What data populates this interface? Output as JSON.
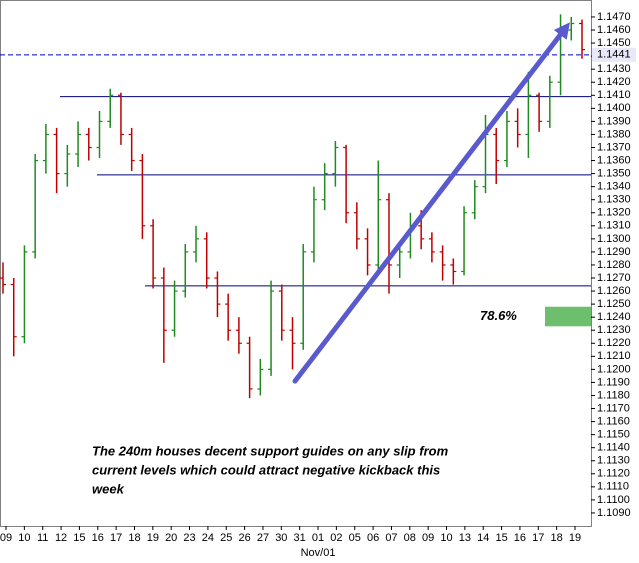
{
  "chart_data": {
    "type": "ohlc",
    "up_color": "#1f8a1f",
    "down_color": "#c00000",
    "ylim": [
      1.108,
      1.1483
    ],
    "yticks": [
      {
        "value": 1.147,
        "label": "1.1470"
      },
      {
        "value": 1.146,
        "label": "1.1460"
      },
      {
        "value": 1.145,
        "label": "1.1450"
      },
      {
        "value": 1.144,
        "label": "1.1440"
      },
      {
        "value": 1.143,
        "label": "1.1430"
      },
      {
        "value": 1.142,
        "label": "1.1420"
      },
      {
        "value": 1.141,
        "label": "1.1410"
      },
      {
        "value": 1.14,
        "label": "1.1400"
      },
      {
        "value": 1.139,
        "label": "1.1390"
      },
      {
        "value": 1.138,
        "label": "1.1380"
      },
      {
        "value": 1.137,
        "label": "1.1370"
      },
      {
        "value": 1.136,
        "label": "1.1360"
      },
      {
        "value": 1.135,
        "label": "1.1350"
      },
      {
        "value": 1.134,
        "label": "1.1340"
      },
      {
        "value": 1.133,
        "label": "1.1330"
      },
      {
        "value": 1.132,
        "label": "1.1320"
      },
      {
        "value": 1.131,
        "label": "1.1310"
      },
      {
        "value": 1.13,
        "label": "1.1300"
      },
      {
        "value": 1.129,
        "label": "1.1290"
      },
      {
        "value": 1.128,
        "label": "1.1280"
      },
      {
        "value": 1.127,
        "label": "1.1270"
      },
      {
        "value": 1.126,
        "label": "1.1260"
      },
      {
        "value": 1.125,
        "label": "1.1250"
      },
      {
        "value": 1.124,
        "label": "1.1240"
      },
      {
        "value": 1.123,
        "label": "1.1230"
      },
      {
        "value": 1.122,
        "label": "1.1220"
      },
      {
        "value": 1.121,
        "label": "1.1210"
      },
      {
        "value": 1.12,
        "label": "1.1200"
      },
      {
        "value": 1.119,
        "label": "1.1190"
      },
      {
        "value": 1.118,
        "label": "1.1180"
      },
      {
        "value": 1.117,
        "label": "1.1170"
      },
      {
        "value": 1.116,
        "label": "1.1160"
      },
      {
        "value": 1.115,
        "label": "1.1150"
      },
      {
        "value": 1.114,
        "label": "1.1140"
      },
      {
        "value": 1.113,
        "label": "1.1130"
      },
      {
        "value": 1.112,
        "label": "1.1120"
      },
      {
        "value": 1.111,
        "label": "1.1110"
      },
      {
        "value": 1.11,
        "label": "1.1100"
      },
      {
        "value": 1.109,
        "label": "1.1090"
      }
    ],
    "x_labels": [
      "09",
      "10",
      "11",
      "12",
      "15",
      "16",
      "17",
      "18",
      "19",
      "20",
      "23",
      "24",
      "25",
      "26",
      "27",
      "30",
      "31",
      "01",
      "02",
      "05",
      "06",
      "07",
      "08",
      "09",
      "10",
      "13",
      "14",
      "15",
      "16",
      "17",
      "18",
      "19"
    ],
    "x_sublabel": "Nov/01",
    "current_price": 1.1441,
    "levels": [
      1.1409,
      1.1349,
      1.1264
    ],
    "trend": {
      "start": 1.1191,
      "end": 1.1466
    },
    "zone": {
      "low": 1.1233,
      "high": 1.1248,
      "label": "78.6%",
      "color": "#6dbf6d"
    },
    "note": [
      "The 240m houses decent support guides on any slip from",
      "current levels which could attract negative kickback this",
      "week"
    ],
    "bars": [
      [
        1.127,
        1.1282,
        1.1258,
        1.1265
      ],
      [
        1.1265,
        1.127,
        1.121,
        1.1225
      ],
      [
        1.1225,
        1.1295,
        1.122,
        1.129
      ],
      [
        1.129,
        1.1365,
        1.1285,
        1.136
      ],
      [
        1.136,
        1.1388,
        1.135,
        1.138
      ],
      [
        1.138,
        1.1385,
        1.1335,
        1.135
      ],
      [
        1.135,
        1.1372,
        1.134,
        1.1365
      ],
      [
        1.1365,
        1.139,
        1.1355,
        1.138
      ],
      [
        1.138,
        1.1385,
        1.136,
        1.137
      ],
      [
        1.137,
        1.1398,
        1.1362,
        1.139
      ],
      [
        1.139,
        1.1415,
        1.1385,
        1.141
      ],
      [
        1.141,
        1.1412,
        1.1372,
        1.138
      ],
      [
        1.138,
        1.1385,
        1.1352,
        1.136
      ],
      [
        1.136,
        1.1365,
        1.13,
        1.131
      ],
      [
        1.131,
        1.1315,
        1.1262,
        1.127
      ],
      [
        1.127,
        1.1278,
        1.1205,
        1.123
      ],
      [
        1.123,
        1.1268,
        1.1225,
        1.126
      ],
      [
        1.126,
        1.1296,
        1.1255,
        1.129
      ],
      [
        1.129,
        1.131,
        1.1282,
        1.13
      ],
      [
        1.13,
        1.1305,
        1.1262,
        1.127
      ],
      [
        1.127,
        1.1275,
        1.124,
        1.125
      ],
      [
        1.125,
        1.1258,
        1.1222,
        1.123
      ],
      [
        1.123,
        1.124,
        1.1212,
        1.122
      ],
      [
        1.122,
        1.1225,
        1.1178,
        1.1185
      ],
      [
        1.1185,
        1.1208,
        1.118,
        1.12
      ],
      [
        1.12,
        1.1268,
        1.1195,
        1.126
      ],
      [
        1.126,
        1.1265,
        1.1222,
        1.123
      ],
      [
        1.123,
        1.124,
        1.12,
        1.122
      ],
      [
        1.122,
        1.1296,
        1.1215,
        1.129
      ],
      [
        1.129,
        1.134,
        1.1282,
        1.133
      ],
      [
        1.133,
        1.1358,
        1.1322,
        1.135
      ],
      [
        1.135,
        1.1375,
        1.134,
        1.137
      ],
      [
        1.137,
        1.1372,
        1.1312,
        1.132
      ],
      [
        1.132,
        1.1328,
        1.1292,
        1.13
      ],
      [
        1.13,
        1.1308,
        1.1272,
        1.128
      ],
      [
        1.128,
        1.136,
        1.1275,
        1.133
      ],
      [
        1.133,
        1.1335,
        1.1258,
        1.128
      ],
      [
        1.128,
        1.1298,
        1.127,
        1.129
      ],
      [
        1.129,
        1.132,
        1.1285,
        1.131
      ],
      [
        1.131,
        1.1322,
        1.1292,
        1.13
      ],
      [
        1.13,
        1.1305,
        1.1282,
        1.129
      ],
      [
        1.129,
        1.1295,
        1.1268,
        1.128
      ],
      [
        1.128,
        1.1285,
        1.1265,
        1.1275
      ],
      [
        1.1275,
        1.1325,
        1.1272,
        1.132
      ],
      [
        1.132,
        1.1345,
        1.1315,
        1.134
      ],
      [
        1.134,
        1.1395,
        1.1335,
        1.138
      ],
      [
        1.138,
        1.1385,
        1.1342,
        1.136
      ],
      [
        1.136,
        1.1398,
        1.1355,
        1.139
      ],
      [
        1.139,
        1.14,
        1.137,
        1.138
      ],
      [
        1.138,
        1.1428,
        1.1362,
        1.141
      ],
      [
        1.141,
        1.1412,
        1.1382,
        1.139
      ],
      [
        1.139,
        1.1425,
        1.1385,
        1.142
      ],
      [
        1.142,
        1.1472,
        1.141,
        1.146
      ],
      [
        1.146,
        1.147,
        1.1452,
        1.1465
      ],
      [
        1.1465,
        1.1468,
        1.1438,
        1.1445
      ]
    ]
  }
}
